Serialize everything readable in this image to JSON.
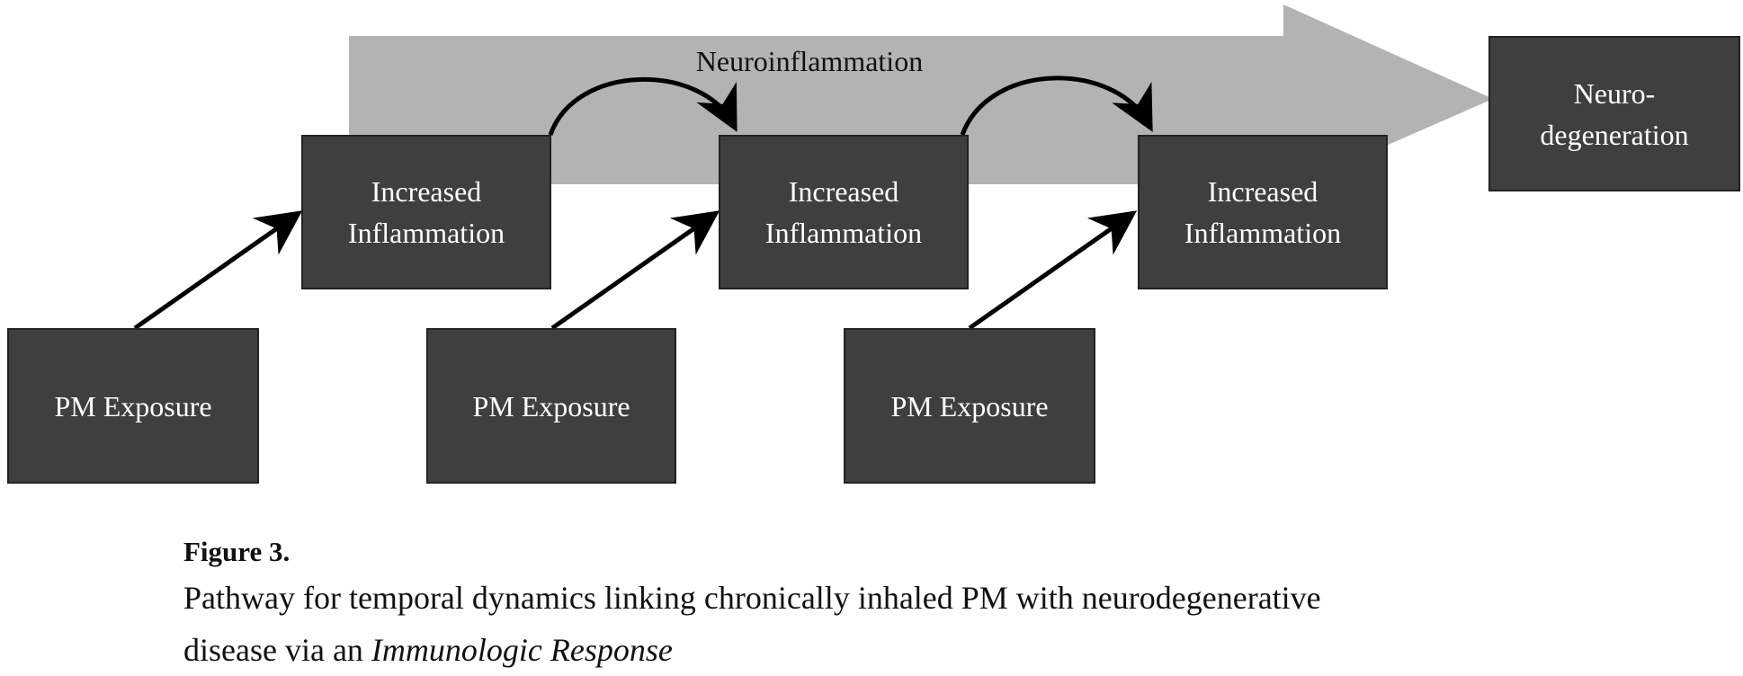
{
  "diagram": {
    "band_label": "Neuroinflammation",
    "pm_exposure_boxes": [
      {
        "label": "PM Exposure"
      },
      {
        "label": "PM Exposure"
      },
      {
        "label": "PM Exposure"
      }
    ],
    "inflammation_boxes": [
      {
        "label": "Increased\nInflammation"
      },
      {
        "label": "Increased\nInflammation"
      },
      {
        "label": "Increased\nInflammation"
      }
    ],
    "outcome_box": {
      "label": "Neuro-\ndegeneration"
    },
    "colors": {
      "box_fill": "#3f3f3f",
      "box_text": "#ffffff",
      "band_fill": "#b3b3b3",
      "arrow": "#000000"
    }
  },
  "caption": {
    "label": "Figure 3.",
    "text_line1": "Pathway for temporal dynamics linking chronically inhaled PM with neurodegenerative",
    "text_line2_prefix": "disease via an ",
    "text_line2_italic": "Immunologic Response"
  }
}
